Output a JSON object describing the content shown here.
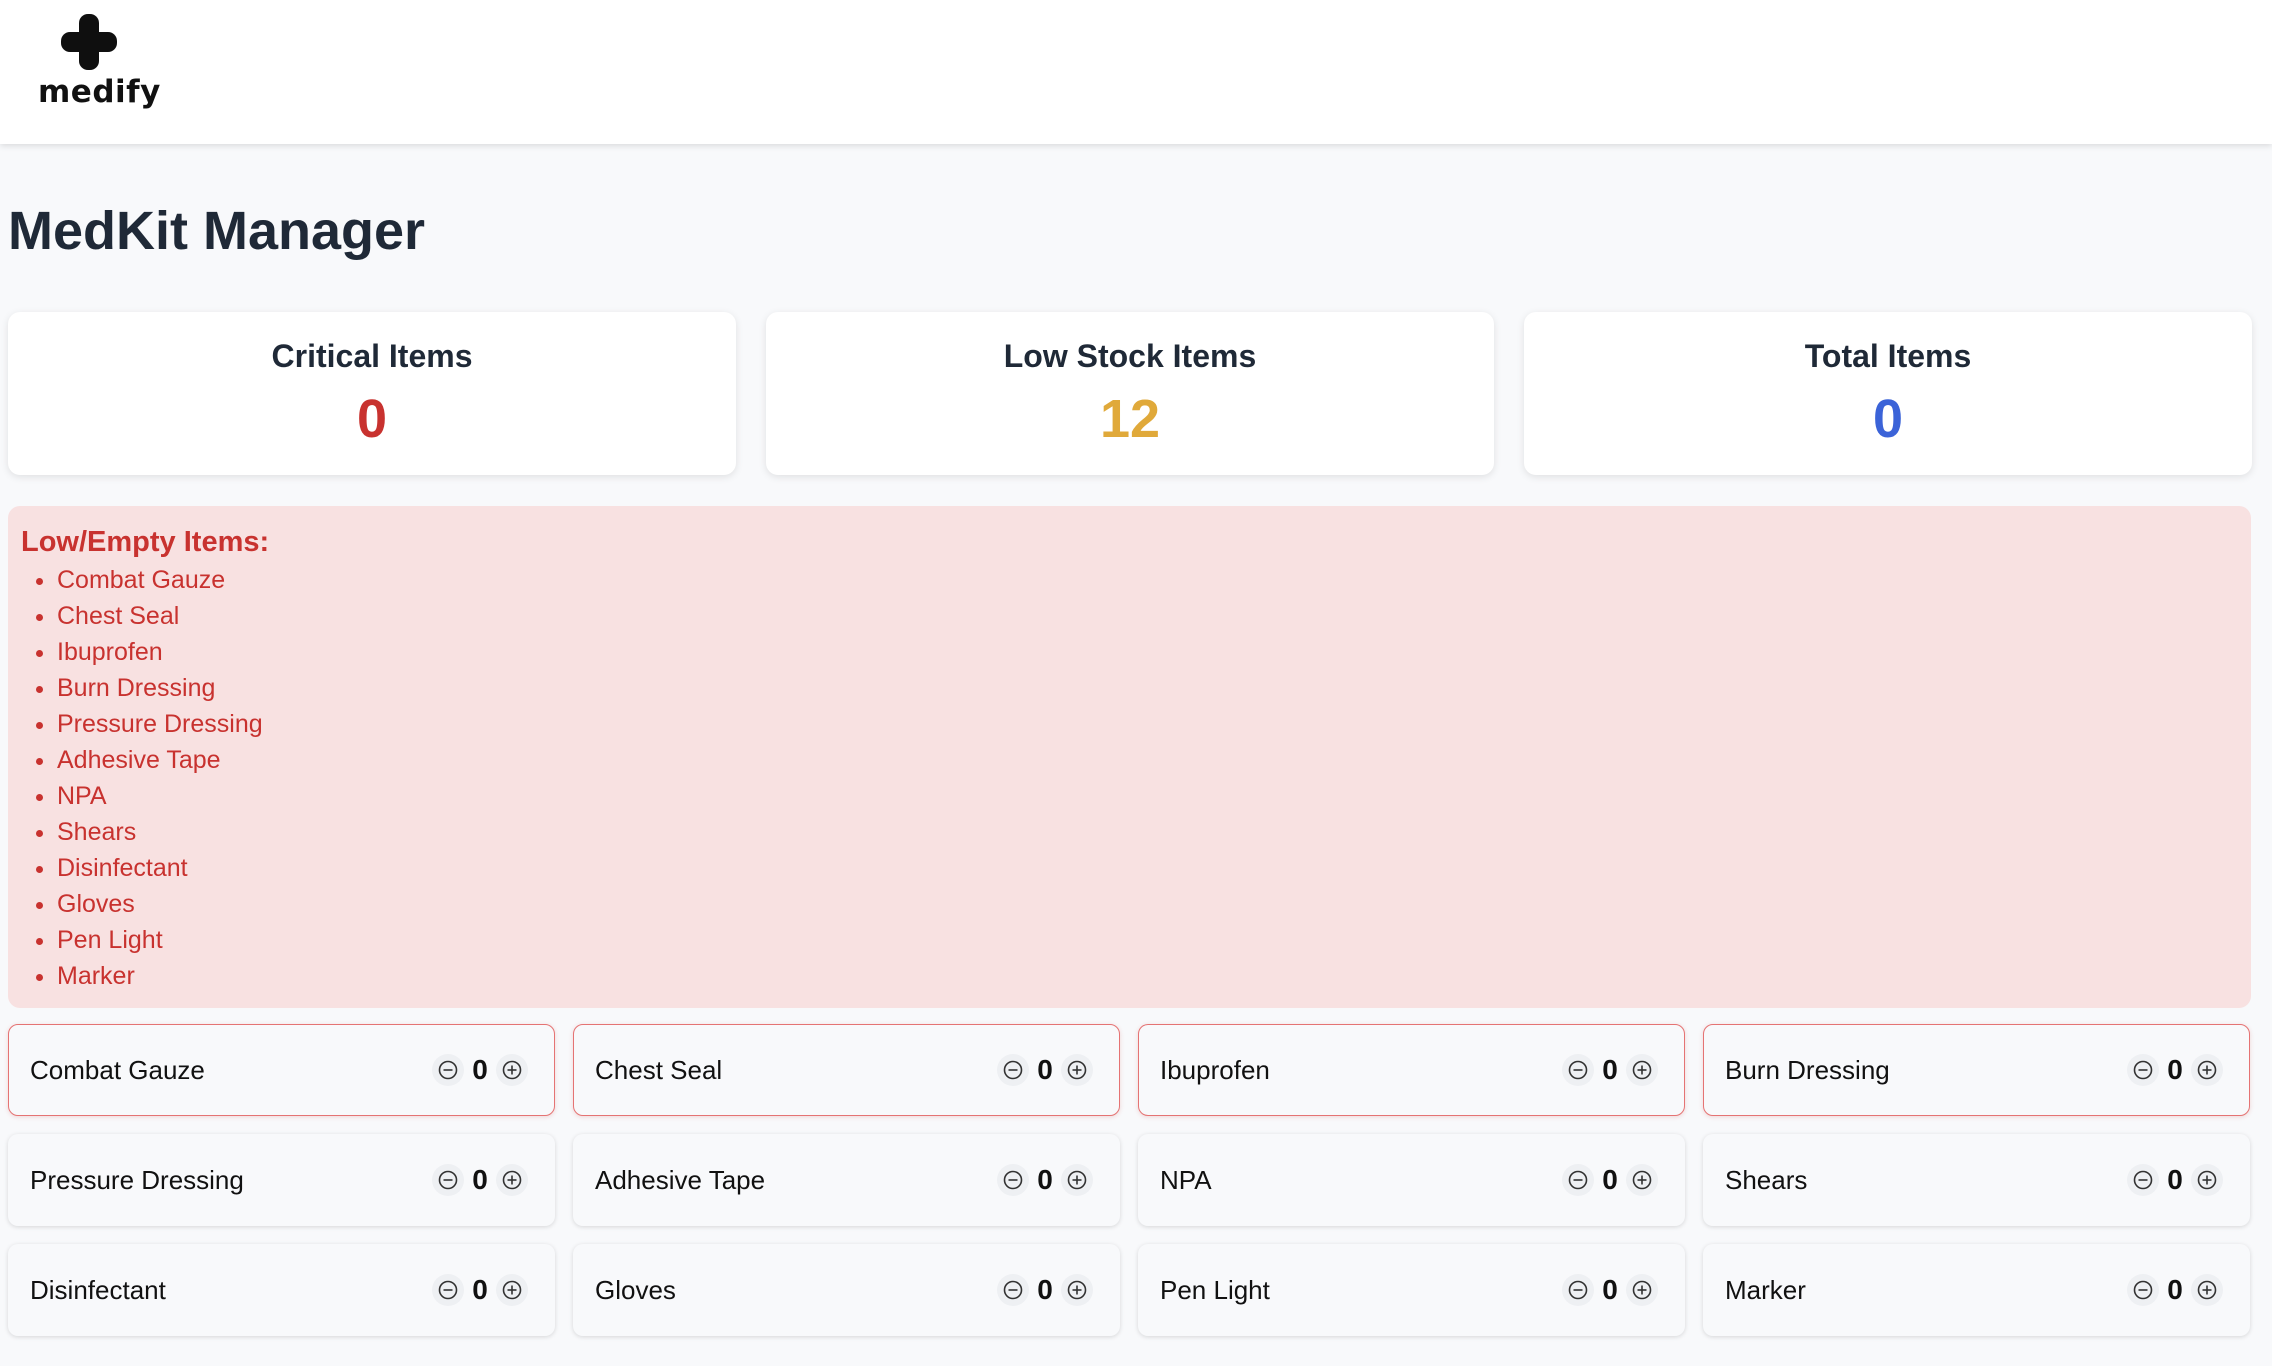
{
  "app": {
    "logo_text": "medify"
  },
  "page": {
    "title": "MedKit Manager"
  },
  "stats": [
    {
      "label": "Critical Items",
      "value": "0",
      "color": "#c8322f"
    },
    {
      "label": "Low Stock Items",
      "value": "12",
      "color": "#e0a93a"
    },
    {
      "label": "Total Items",
      "value": "0",
      "color": "#3b63d8"
    }
  ],
  "alert": {
    "title": "Low/Empty Items:",
    "items": [
      "Combat Gauze",
      "Chest Seal",
      "Ibuprofen",
      "Burn Dressing",
      "Pressure Dressing",
      "Adhesive Tape",
      "NPA",
      "Shears",
      "Disinfectant",
      "Gloves",
      "Pen Light",
      "Marker"
    ]
  },
  "inventory": [
    {
      "name": "Combat Gauze",
      "qty": "0",
      "highlighted": true
    },
    {
      "name": "Chest Seal",
      "qty": "0",
      "highlighted": true
    },
    {
      "name": "Ibuprofen",
      "qty": "0",
      "highlighted": true
    },
    {
      "name": "Burn Dressing",
      "qty": "0",
      "highlighted": true
    },
    {
      "name": "Pressure Dressing",
      "qty": "0",
      "highlighted": false
    },
    {
      "name": "Adhesive Tape",
      "qty": "0",
      "highlighted": false
    },
    {
      "name": "NPA",
      "qty": "0",
      "highlighted": false
    },
    {
      "name": "Shears",
      "qty": "0",
      "highlighted": false
    },
    {
      "name": "Disinfectant",
      "qty": "0",
      "highlighted": false
    },
    {
      "name": "Gloves",
      "qty": "0",
      "highlighted": false
    },
    {
      "name": "Pen Light",
      "qty": "0",
      "highlighted": false
    },
    {
      "name": "Marker",
      "qty": "0",
      "highlighted": false
    }
  ],
  "icons": {
    "decrement": "minus-circle-icon",
    "increment": "plus-circle-icon",
    "logo": "medical-cross-icon"
  },
  "colors": {
    "alert_bg": "#f8e1e1",
    "alert_text": "#c8322f",
    "low_border": "#e57373"
  }
}
